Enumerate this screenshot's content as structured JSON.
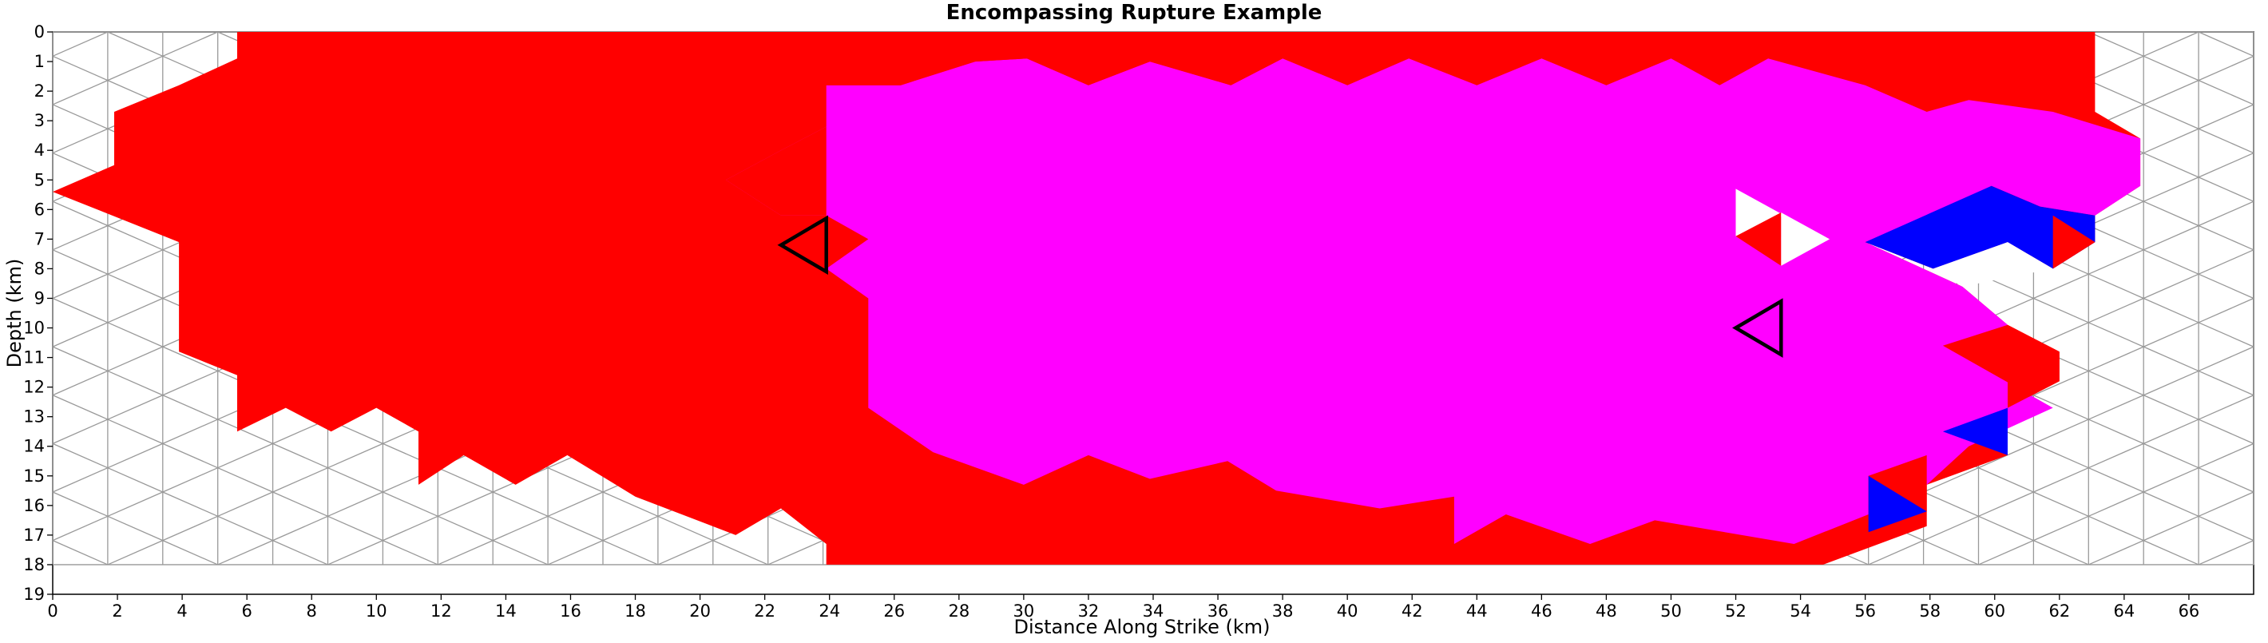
{
  "chart_data": {
    "type": "heatmap",
    "title": "Encompassing Rupture Example",
    "xlabel": "Distance Along Strike (km)",
    "ylabel": "Depth (km)",
    "xlim": [
      0,
      68
    ],
    "ylim": [
      19,
      0
    ],
    "grid": "triangular mesh",
    "x_ticks": [
      0,
      2,
      4,
      6,
      8,
      10,
      12,
      14,
      16,
      18,
      20,
      22,
      24,
      26,
      28,
      30,
      32,
      34,
      36,
      38,
      40,
      42,
      44,
      46,
      48,
      50,
      52,
      54,
      56,
      58,
      60,
      62,
      64,
      66
    ],
    "y_ticks": [
      0,
      1,
      2,
      3,
      4,
      5,
      6,
      7,
      8,
      9,
      10,
      11,
      12,
      13,
      14,
      15,
      16,
      17,
      18,
      19
    ],
    "colors": {
      "red": "#ff0000",
      "magenta": "#ff00ff",
      "blue": "#0000ff",
      "mesh_line": "#000000",
      "empty_line": "#999999",
      "highlight": "#000000"
    },
    "mesh": {
      "columns": 40,
      "rows": 11,
      "x_start": 0,
      "x_end": 68,
      "depth_start": 0,
      "depth_end": 18
    },
    "regions": [
      {
        "fill": "red",
        "shape": "polygon",
        "points": [
          [
            5.7,
            0
          ],
          [
            63.1,
            0
          ],
          [
            63.1,
            2.7
          ],
          [
            64.5,
            3.6
          ],
          [
            64.5,
            5.2
          ],
          [
            63.1,
            6.2
          ],
          [
            63.1,
            7.1
          ],
          [
            61.8,
            8.0
          ],
          [
            60.4,
            7.1
          ],
          [
            58.1,
            8.0
          ],
          [
            56.0,
            7.1
          ],
          [
            59.0,
            8.6
          ],
          [
            60.4,
            9.9
          ],
          [
            62.0,
            10.8
          ],
          [
            62.0,
            11.8
          ],
          [
            60.4,
            12.7
          ],
          [
            60.4,
            14.3
          ],
          [
            57.9,
            15.3
          ],
          [
            57.9,
            16.7
          ],
          [
            54.7,
            18
          ],
          [
            23.9,
            18
          ],
          [
            23.9,
            17.3
          ],
          [
            22.5,
            16.1
          ],
          [
            21.1,
            17.0
          ],
          [
            18.0,
            15.7
          ],
          [
            15.9,
            14.3
          ],
          [
            14.3,
            15.3
          ],
          [
            12.7,
            14.3
          ],
          [
            11.3,
            15.3
          ],
          [
            11.3,
            13.5
          ],
          [
            10.0,
            12.7
          ],
          [
            8.6,
            13.5
          ],
          [
            7.2,
            12.7
          ],
          [
            5.7,
            13.5
          ],
          [
            5.7,
            11.6
          ],
          [
            3.9,
            10.8
          ],
          [
            3.9,
            7.1
          ],
          [
            0,
            5.4
          ],
          [
            1.9,
            4.5
          ],
          [
            1.9,
            2.7
          ],
          [
            3.9,
            1.8
          ],
          [
            5.7,
            0.9
          ]
        ]
      },
      {
        "fill": "magenta",
        "shape": "polygon",
        "points": [
          [
            22.5,
            6.2
          ],
          [
            20.8,
            5.0
          ],
          [
            22.5,
            4.0
          ],
          [
            23.9,
            3.2
          ],
          [
            23.9,
            1.8
          ],
          [
            26.2,
            1.8
          ],
          [
            28.5,
            1.0
          ],
          [
            30.1,
            0.9
          ],
          [
            32.0,
            1.8
          ],
          [
            33.9,
            1.0
          ],
          [
            36.4,
            1.8
          ],
          [
            38.0,
            0.9
          ],
          [
            40.0,
            1.8
          ],
          [
            41.9,
            0.9
          ],
          [
            44.0,
            1.8
          ],
          [
            46.0,
            0.9
          ],
          [
            48.0,
            1.8
          ],
          [
            50.0,
            0.9
          ],
          [
            51.5,
            1.8
          ],
          [
            53.0,
            0.9
          ],
          [
            56.0,
            1.8
          ],
          [
            57.9,
            2.7
          ],
          [
            59.2,
            2.3
          ],
          [
            61.8,
            2.7
          ],
          [
            64.5,
            3.6
          ],
          [
            64.5,
            5.2
          ],
          [
            63.1,
            6.2
          ],
          [
            61.4,
            5.9
          ],
          [
            59.9,
            5.2
          ],
          [
            58.4,
            6.2
          ],
          [
            56.0,
            7.1
          ],
          [
            59.0,
            8.6
          ],
          [
            60.4,
            9.9
          ],
          [
            58.4,
            10.6
          ],
          [
            61.8,
            12.7
          ],
          [
            59.2,
            14.0
          ],
          [
            57.9,
            15.3
          ],
          [
            56.1,
            15.0
          ],
          [
            56.1,
            16.3
          ],
          [
            53.8,
            17.3
          ],
          [
            49.5,
            16.5
          ],
          [
            47.5,
            17.3
          ],
          [
            44.9,
            16.3
          ],
          [
            43.3,
            17.3
          ],
          [
            43.3,
            15.7
          ],
          [
            41.0,
            16.1
          ],
          [
            37.8,
            15.5
          ],
          [
            36.3,
            14.5
          ],
          [
            33.9,
            15.1
          ],
          [
            32.0,
            14.3
          ],
          [
            30.0,
            15.3
          ],
          [
            27.2,
            14.2
          ],
          [
            25.2,
            12.7
          ],
          [
            25.2,
            9.0
          ],
          [
            23.9,
            8.0
          ],
          [
            25.2,
            7.0
          ],
          [
            23.9,
            6.2
          ]
        ]
      },
      {
        "fill": "red",
        "shape": "polygon",
        "points": [
          [
            23.9,
            3.2
          ],
          [
            23.9,
            6.2
          ],
          [
            22.5,
            6.2
          ],
          [
            20.8,
            5.0
          ],
          [
            22.5,
            4.0
          ]
        ]
      },
      {
        "fill": "red",
        "shape": "polygon",
        "points": [
          [
            38.0,
            0
          ],
          [
            38.0,
            0.9
          ],
          [
            36.4,
            1.8
          ],
          [
            33.9,
            1.0
          ],
          [
            32.0,
            1.8
          ],
          [
            30.1,
            0.9
          ],
          [
            28.5,
            1.0
          ],
          [
            26.2,
            1.8
          ],
          [
            23.9,
            1.8
          ],
          [
            23.9,
            0
          ]
        ]
      },
      {
        "fill": "white",
        "shape": "polygon",
        "points": [
          [
            52.0,
            5.3
          ],
          [
            53.5,
            6.2
          ],
          [
            52.0,
            6.9
          ],
          [
            52.0,
            6.4
          ]
        ]
      },
      {
        "fill": "red",
        "shape": "polygon",
        "points": [
          [
            52.0,
            6.9
          ],
          [
            53.4,
            6.1
          ],
          [
            53.4,
            7.9
          ]
        ]
      },
      {
        "fill": "white",
        "shape": "polygon",
        "points": [
          [
            53.4,
            6.1
          ],
          [
            54.9,
            7.0
          ],
          [
            53.4,
            7.9
          ]
        ]
      },
      {
        "fill": "blue",
        "shape": "polygon",
        "points": [
          [
            56.0,
            7.1
          ],
          [
            59.9,
            5.2
          ],
          [
            61.4,
            5.9
          ],
          [
            63.1,
            6.2
          ],
          [
            63.1,
            7.1
          ],
          [
            61.8,
            8.0
          ],
          [
            60.4,
            7.1
          ],
          [
            58.1,
            8.0
          ]
        ]
      },
      {
        "fill": "red",
        "shape": "polygon",
        "points": [
          [
            61.8,
            6.2
          ],
          [
            63.1,
            7.1
          ],
          [
            61.8,
            8.0
          ]
        ]
      },
      {
        "fill": "white",
        "shape": "polygon",
        "points": [
          [
            58.1,
            8.0
          ],
          [
            60.4,
            7.1
          ],
          [
            61.8,
            8.0
          ],
          [
            59.0,
            8.6
          ]
        ]
      },
      {
        "fill": "red",
        "shape": "polygon",
        "points": [
          [
            60.4,
            9.9
          ],
          [
            62.0,
            10.8
          ],
          [
            62.0,
            11.8
          ],
          [
            60.4,
            12.7
          ]
        ]
      },
      {
        "fill": "blue",
        "shape": "polygon",
        "points": [
          [
            58.4,
            13.5
          ],
          [
            60.4,
            12.7
          ],
          [
            60.4,
            14.3
          ]
        ]
      },
      {
        "fill": "red",
        "shape": "polygon",
        "points": [
          [
            56.1,
            15.0
          ],
          [
            57.9,
            14.3
          ],
          [
            57.9,
            16.2
          ]
        ]
      },
      {
        "fill": "blue",
        "shape": "polygon",
        "points": [
          [
            56.1,
            15.0
          ],
          [
            57.9,
            16.2
          ],
          [
            56.1,
            16.9
          ]
        ]
      }
    ],
    "highlighted_elements": [
      {
        "points": [
          [
            22.5,
            7.2
          ],
          [
            23.9,
            6.3
          ],
          [
            23.9,
            8.1
          ]
        ]
      },
      {
        "points": [
          [
            52.0,
            10.0
          ],
          [
            53.4,
            9.1
          ],
          [
            53.4,
            10.9
          ]
        ]
      }
    ]
  }
}
